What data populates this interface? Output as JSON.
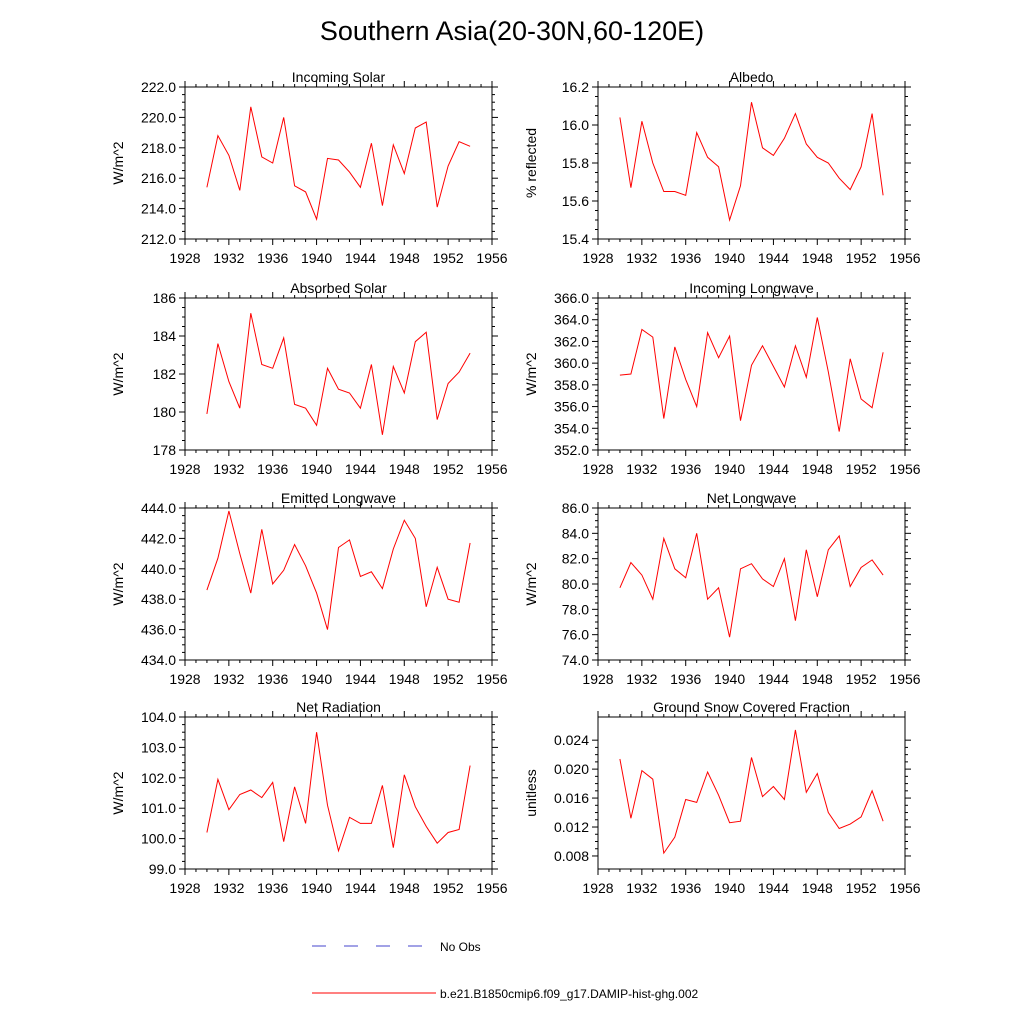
{
  "figure": {
    "title": "Southern Asia(20-30N,60-120E)"
  },
  "legend": {
    "items": [
      {
        "label": "No Obs",
        "color": "#4444cc",
        "dash": true
      },
      {
        "label": "b.e21.B1850cmip6.f09_g17.DAMIP-hist-ghg.002",
        "color": "#ff0000",
        "dash": false
      }
    ]
  },
  "chart_data": [
    {
      "type": "line",
      "title": "Incoming Solar",
      "xlabel": "",
      "ylabel": "W/m^2",
      "xlim": [
        1928,
        1956
      ],
      "ylim": [
        212.0,
        222.0
      ],
      "xticks": [
        1928,
        1932,
        1936,
        1940,
        1944,
        1948,
        1952,
        1956
      ],
      "yticks": [
        "212.0",
        "214.0",
        "216.0",
        "218.0",
        "220.0",
        "222.0"
      ],
      "x": [
        1930,
        1931,
        1932,
        1933,
        1934,
        1935,
        1936,
        1937,
        1938,
        1939,
        1940,
        1941,
        1942,
        1943,
        1944,
        1945,
        1946,
        1947,
        1948,
        1949,
        1950,
        1951,
        1952,
        1953,
        1954
      ],
      "series": [
        {
          "color": "#ff0000",
          "values": [
            215.4,
            218.8,
            217.5,
            215.2,
            220.7,
            217.4,
            217.0,
            220.0,
            215.5,
            215.1,
            213.3,
            217.3,
            217.2,
            216.4,
            215.4,
            218.3,
            214.2,
            218.2,
            216.3,
            219.3,
            219.7,
            214.1,
            216.8,
            218.4,
            218.1
          ]
        }
      ]
    },
    {
      "type": "line",
      "title": "Albedo",
      "xlabel": "",
      "ylabel": "% reflected",
      "xlim": [
        1928,
        1956
      ],
      "ylim": [
        15.4,
        16.2
      ],
      "xticks": [
        1928,
        1932,
        1936,
        1940,
        1944,
        1948,
        1952,
        1956
      ],
      "yticks": [
        "15.4",
        "15.6",
        "15.8",
        "16.0",
        "16.2"
      ],
      "x": [
        1930,
        1931,
        1932,
        1933,
        1934,
        1935,
        1936,
        1937,
        1938,
        1939,
        1940,
        1941,
        1942,
        1943,
        1944,
        1945,
        1946,
        1947,
        1948,
        1949,
        1950,
        1951,
        1952,
        1953,
        1954
      ],
      "series": [
        {
          "color": "#ff0000",
          "values": [
            16.04,
            15.67,
            16.02,
            15.8,
            15.65,
            15.65,
            15.63,
            15.96,
            15.83,
            15.78,
            15.5,
            15.68,
            16.12,
            15.88,
            15.84,
            15.93,
            16.06,
            15.9,
            15.83,
            15.8,
            15.72,
            15.66,
            15.78,
            16.06,
            15.63
          ]
        }
      ]
    },
    {
      "type": "line",
      "title": "Absorbed Solar",
      "xlabel": "",
      "ylabel": "W/m^2",
      "xlim": [
        1928,
        1956
      ],
      "ylim": [
        178,
        186
      ],
      "xticks": [
        1928,
        1932,
        1936,
        1940,
        1944,
        1948,
        1952,
        1956
      ],
      "yticks": [
        "178",
        "180",
        "182",
        "184",
        "186"
      ],
      "x": [
        1930,
        1931,
        1932,
        1933,
        1934,
        1935,
        1936,
        1937,
        1938,
        1939,
        1940,
        1941,
        1942,
        1943,
        1944,
        1945,
        1946,
        1947,
        1948,
        1949,
        1950,
        1951,
        1952,
        1953,
        1954
      ],
      "series": [
        {
          "color": "#ff0000",
          "values": [
            179.9,
            183.6,
            181.6,
            180.2,
            185.2,
            182.5,
            182.3,
            183.9,
            180.4,
            180.2,
            179.3,
            182.3,
            181.2,
            181.0,
            180.2,
            182.5,
            178.8,
            182.4,
            181.0,
            183.7,
            184.2,
            179.6,
            181.5,
            182.1,
            183.1
          ]
        }
      ]
    },
    {
      "type": "line",
      "title": "Incoming Longwave",
      "xlabel": "",
      "ylabel": "W/m^2",
      "xlim": [
        1928,
        1956
      ],
      "ylim": [
        352.0,
        366.0
      ],
      "xticks": [
        1928,
        1932,
        1936,
        1940,
        1944,
        1948,
        1952,
        1956
      ],
      "yticks": [
        "352.0",
        "354.0",
        "356.0",
        "358.0",
        "360.0",
        "362.0",
        "364.0",
        "366.0"
      ],
      "x": [
        1930,
        1931,
        1932,
        1933,
        1934,
        1935,
        1936,
        1937,
        1938,
        1939,
        1940,
        1941,
        1942,
        1943,
        1944,
        1945,
        1946,
        1947,
        1948,
        1949,
        1950,
        1951,
        1952,
        1953,
        1954
      ],
      "series": [
        {
          "color": "#ff0000",
          "values": [
            358.9,
            359.0,
            363.1,
            362.4,
            354.9,
            361.5,
            358.5,
            356.0,
            362.8,
            360.5,
            362.5,
            354.7,
            359.8,
            361.6,
            359.7,
            357.8,
            361.6,
            358.7,
            364.2,
            359.2,
            353.7,
            360.4,
            356.7,
            355.9,
            361.0
          ]
        }
      ]
    },
    {
      "type": "line",
      "title": "Emitted Longwave",
      "xlabel": "",
      "ylabel": "W/m^2",
      "xlim": [
        1928,
        1956
      ],
      "ylim": [
        434.0,
        444.0
      ],
      "xticks": [
        1928,
        1932,
        1936,
        1940,
        1944,
        1948,
        1952,
        1956
      ],
      "yticks": [
        "434.0",
        "436.0",
        "438.0",
        "440.0",
        "442.0",
        "444.0"
      ],
      "x": [
        1930,
        1931,
        1932,
        1933,
        1934,
        1935,
        1936,
        1937,
        1938,
        1939,
        1940,
        1941,
        1942,
        1943,
        1944,
        1945,
        1946,
        1947,
        1948,
        1949,
        1950,
        1951,
        1952,
        1953,
        1954
      ],
      "series": [
        {
          "color": "#ff0000",
          "values": [
            438.6,
            440.7,
            443.8,
            441.0,
            438.4,
            442.6,
            439.0,
            439.9,
            441.6,
            440.2,
            438.4,
            436.0,
            441.4,
            441.9,
            439.5,
            439.8,
            438.7,
            441.3,
            443.2,
            442.0,
            437.5,
            440.1,
            438.0,
            437.8,
            441.7
          ]
        }
      ]
    },
    {
      "type": "line",
      "title": "Net Longwave",
      "xlabel": "",
      "ylabel": "W/m^2",
      "xlim": [
        1928,
        1956
      ],
      "ylim": [
        74.0,
        86.0
      ],
      "xticks": [
        1928,
        1932,
        1936,
        1940,
        1944,
        1948,
        1952,
        1956
      ],
      "yticks": [
        "74.0",
        "76.0",
        "78.0",
        "80.0",
        "82.0",
        "84.0",
        "86.0"
      ],
      "x": [
        1930,
        1931,
        1932,
        1933,
        1934,
        1935,
        1936,
        1937,
        1938,
        1939,
        1940,
        1941,
        1942,
        1943,
        1944,
        1945,
        1946,
        1947,
        1948,
        1949,
        1950,
        1951,
        1952,
        1953,
        1954
      ],
      "series": [
        {
          "color": "#ff0000",
          "values": [
            79.7,
            81.7,
            80.7,
            78.8,
            83.6,
            81.2,
            80.5,
            84.0,
            78.8,
            79.7,
            75.8,
            81.2,
            81.6,
            80.4,
            79.8,
            82.0,
            77.1,
            82.7,
            79.0,
            82.7,
            83.8,
            79.8,
            81.3,
            81.9,
            80.7
          ]
        }
      ]
    },
    {
      "type": "line",
      "title": "Net Radiation",
      "xlabel": "",
      "ylabel": "W/m^2",
      "xlim": [
        1928,
        1956
      ],
      "ylim": [
        99.0,
        104.0
      ],
      "xticks": [
        1928,
        1932,
        1936,
        1940,
        1944,
        1948,
        1952,
        1956
      ],
      "yticks": [
        "99.0",
        "100.0",
        "101.0",
        "102.0",
        "103.0",
        "104.0"
      ],
      "x": [
        1930,
        1931,
        1932,
        1933,
        1934,
        1935,
        1936,
        1937,
        1938,
        1939,
        1940,
        1941,
        1942,
        1943,
        1944,
        1945,
        1946,
        1947,
        1948,
        1949,
        1950,
        1951,
        1952,
        1953,
        1954
      ],
      "series": [
        {
          "color": "#ff0000",
          "values": [
            100.2,
            101.95,
            100.95,
            101.45,
            101.6,
            101.35,
            101.85,
            99.9,
            101.7,
            100.5,
            103.5,
            101.1,
            99.6,
            100.7,
            100.5,
            100.5,
            101.75,
            99.7,
            102.1,
            101.05,
            100.4,
            99.85,
            100.2,
            100.3,
            102.4
          ]
        }
      ]
    },
    {
      "type": "line",
      "title": "Ground Snow Covered Fraction",
      "xlabel": "",
      "ylabel": "unitless",
      "xlim": [
        1928,
        1956
      ],
      "ylim": [
        0.0062,
        0.0272
      ],
      "xticks": [
        1928,
        1932,
        1936,
        1940,
        1944,
        1948,
        1952,
        1956
      ],
      "yticks": [
        "0.008",
        "0.012",
        "0.016",
        "0.020",
        "0.024"
      ],
      "ytick_values": [
        0.008,
        0.012,
        0.016,
        0.02,
        0.024
      ],
      "x": [
        1930,
        1931,
        1932,
        1933,
        1934,
        1935,
        1936,
        1937,
        1938,
        1939,
        1940,
        1941,
        1942,
        1943,
        1944,
        1945,
        1946,
        1947,
        1948,
        1949,
        1950,
        1951,
        1952,
        1953,
        1954
      ],
      "series": [
        {
          "color": "#ff0000",
          "values": [
            0.0214,
            0.0132,
            0.0198,
            0.0186,
            0.0084,
            0.0106,
            0.0158,
            0.0154,
            0.0196,
            0.0164,
            0.0126,
            0.0128,
            0.0216,
            0.0162,
            0.0176,
            0.0158,
            0.0254,
            0.0168,
            0.0194,
            0.014,
            0.0118,
            0.0124,
            0.0134,
            0.017,
            0.0128
          ]
        }
      ]
    }
  ]
}
